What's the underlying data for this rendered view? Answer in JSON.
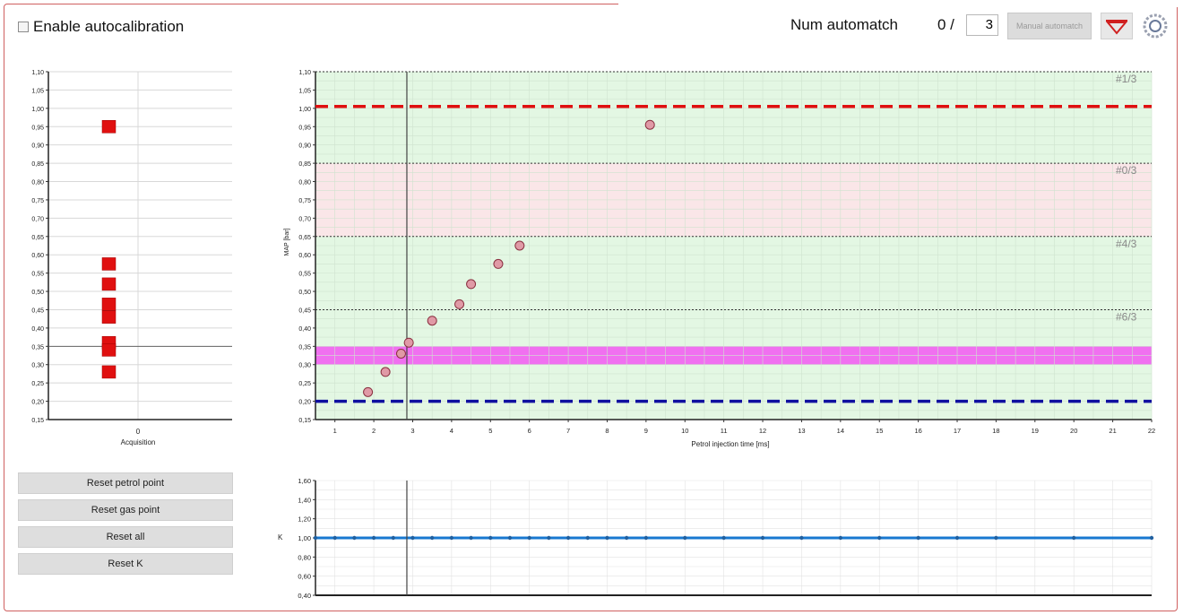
{
  "header": {
    "autocal_label": "Enable autocalibration",
    "autocal_checked": false,
    "automatch_label": "Num automatch",
    "automatch_count": "0 /",
    "automatch_total": "3",
    "manual_button": "Manual automatch",
    "icons": [
      "filter-icon",
      "settings-gear-icon"
    ]
  },
  "buttons": {
    "reset_petrol": "Reset petrol point",
    "reset_gas": "Reset gas point",
    "reset_all": "Reset all",
    "reset_k": "Reset K"
  },
  "colors": {
    "marker_red": "#e01010",
    "petrol_line": "#e01010",
    "gas_line": "#1010a0",
    "band_green": "#e3f7e3",
    "band_red": "#fae6e8",
    "band_magenta": "#f070f0",
    "k_line": "#1878d0",
    "point_fill": "#e09aa6"
  },
  "chart_data": [
    {
      "id": "acquisition",
      "type": "scatter",
      "xlabel": "Acquisition",
      "x_ticks": [
        "0"
      ],
      "ylim": [
        0.15,
        1.1
      ],
      "y_ticks": [
        "0,15",
        "0,20",
        "0,25",
        "0,30",
        "0,35",
        "0,40",
        "0,45",
        "0,50",
        "0,55",
        "0,60",
        "0,65",
        "0,70",
        "0,75",
        "0,80",
        "0,85",
        "0,90",
        "0,95",
        "1,00",
        "1,05",
        "1,10"
      ],
      "y_values": [
        0.95,
        0.575,
        0.52,
        0.465,
        0.43,
        0.36,
        0.34,
        0.28
      ],
      "highlight_y": 0.35
    },
    {
      "id": "map-vs-injection",
      "type": "scatter",
      "xlabel": "Petrol injection time [ms]",
      "ylabel": "MAP [bar]",
      "xlim": [
        0.5,
        22
      ],
      "ylim": [
        0.15,
        1.1
      ],
      "x_ticks": [
        "1",
        "2",
        "3",
        "4",
        "5",
        "6",
        "7",
        "8",
        "9",
        "10",
        "11",
        "12",
        "13",
        "14",
        "15",
        "16",
        "17",
        "18",
        "19",
        "20",
        "21",
        "22"
      ],
      "y_ticks": [
        "0,15",
        "0,20",
        "0,25",
        "0,30",
        "0,35",
        "0,40",
        "0,45",
        "0,50",
        "0,55",
        "0,60",
        "0,65",
        "0,70",
        "0,75",
        "0,80",
        "0,85",
        "0,90",
        "0,95",
        "1,00",
        "1,05",
        "1,10"
      ],
      "points": [
        {
          "x": 1.85,
          "y": 0.225
        },
        {
          "x": 2.3,
          "y": 0.28
        },
        {
          "x": 2.7,
          "y": 0.33
        },
        {
          "x": 2.9,
          "y": 0.36
        },
        {
          "x": 3.5,
          "y": 0.42
        },
        {
          "x": 4.2,
          "y": 0.465
        },
        {
          "x": 4.5,
          "y": 0.52
        },
        {
          "x": 5.2,
          "y": 0.575
        },
        {
          "x": 5.75,
          "y": 0.625
        },
        {
          "x": 9.1,
          "y": 0.955
        }
      ],
      "cursor_x": 2.85,
      "upper_line_y": 1.005,
      "lower_line_y": 0.2,
      "bands": [
        {
          "name": "#1/3",
          "from": 0.85,
          "to": 1.1,
          "color": "green"
        },
        {
          "name": "#0/3",
          "from": 0.65,
          "to": 0.85,
          "color": "red"
        },
        {
          "name": "#4/3",
          "from": 0.45,
          "to": 0.65,
          "color": "green"
        },
        {
          "name": "#6/3",
          "from": 0.15,
          "to": 0.45,
          "color": "green"
        }
      ],
      "magenta_band": [
        0.3,
        0.35
      ]
    },
    {
      "id": "k-factor",
      "type": "line",
      "ylabel": "K",
      "xlim": [
        0.5,
        22
      ],
      "ylim": [
        0.4,
        1.6
      ],
      "y_ticks": [
        "0,40",
        "0,60",
        "0,80",
        "1,00",
        "1,20",
        "1,40",
        "1,60"
      ],
      "k_value": 1.0,
      "marker_x": [
        0.5,
        1,
        1.5,
        2,
        2.5,
        3,
        3.5,
        4,
        4.5,
        5,
        5.5,
        6,
        6.5,
        7,
        7.5,
        8,
        8.5,
        9,
        10,
        11,
        12,
        13,
        14,
        15,
        16,
        17,
        18,
        20,
        22
      ],
      "cursor_x": 2.85
    }
  ]
}
